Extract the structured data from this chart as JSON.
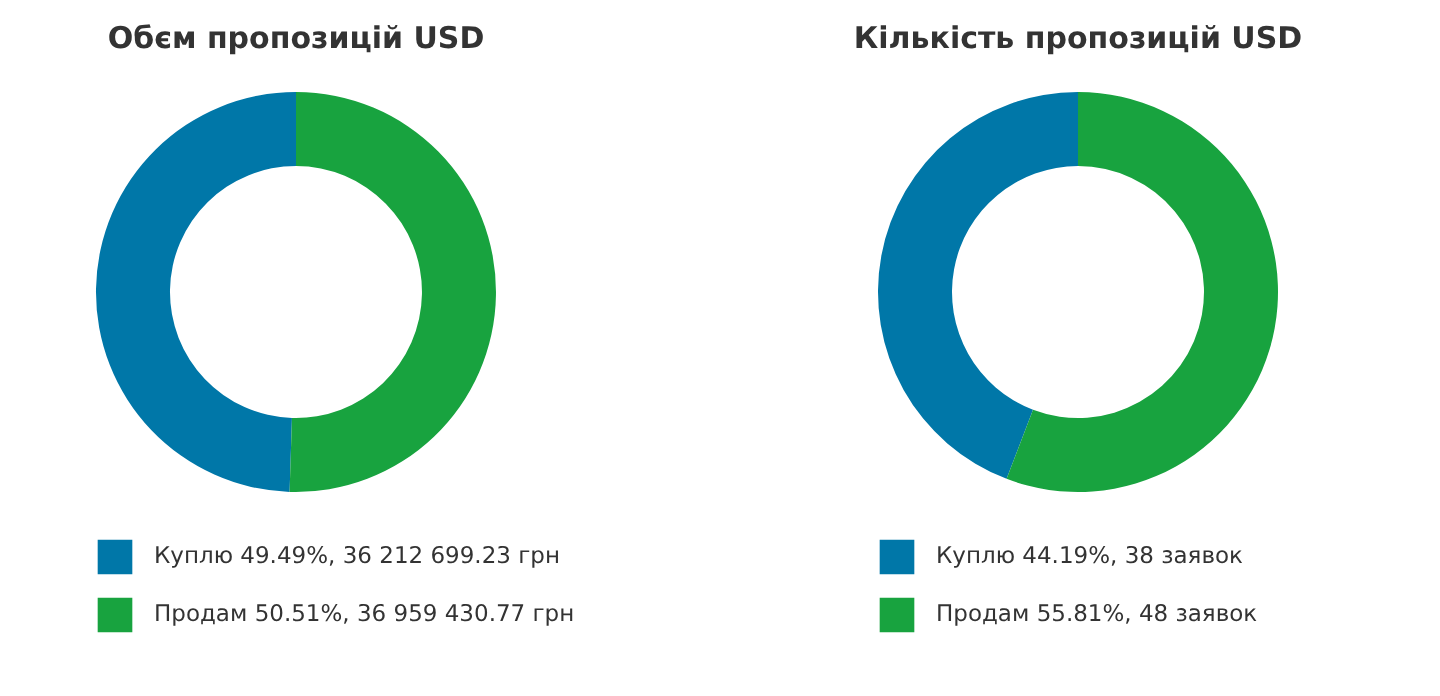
{
  "chart_data": [
    {
      "type": "donut",
      "title": "Обєм пропозицій USD",
      "categories": [
        "Куплю",
        "Продам"
      ],
      "values": [
        49.49,
        50.51
      ],
      "colors": [
        "#0077a8",
        "#18a33f"
      ],
      "value_labels": [
        "49.49%, 36 212 699.23 грн",
        "50.51%, 36 959 430.77 грн"
      ],
      "legend": "bottom"
    },
    {
      "type": "donut",
      "title": "Кількість пропозицій USD",
      "categories": [
        "Куплю",
        "Продам"
      ],
      "values": [
        44.19,
        55.81
      ],
      "colors": [
        "#0077a8",
        "#18a33f"
      ],
      "value_labels": [
        "44.19%, 38 заявок",
        "55.81%, 48 заявок"
      ],
      "legend": "bottom"
    }
  ]
}
